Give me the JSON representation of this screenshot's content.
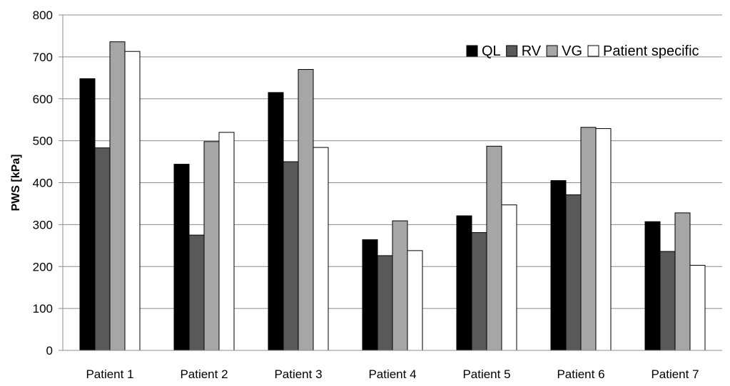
{
  "chart_data": {
    "type": "bar",
    "title": "",
    "xlabel": "",
    "ylabel": "PWS [kPa]",
    "ylim": [
      0,
      800
    ],
    "yticks": [
      0,
      100,
      200,
      300,
      400,
      500,
      600,
      700,
      800
    ],
    "grid": true,
    "legend_position": "top-right",
    "categories": [
      "Patient 1",
      "Patient 2",
      "Patient 3",
      "Patient 4",
      "Patient 5",
      "Patient 6",
      "Patient 7"
    ],
    "series": [
      {
        "name": "QL",
        "color": "#000000",
        "values": [
          648,
          444,
          615,
          264,
          321,
          405,
          307
        ]
      },
      {
        "name": "RV",
        "color": "#595959",
        "values": [
          483,
          275,
          450,
          226,
          281,
          371,
          236
        ]
      },
      {
        "name": "VG",
        "color": "#a6a6a6",
        "values": [
          736,
          498,
          670,
          309,
          487,
          532,
          328
        ]
      },
      {
        "name": "Patient specific",
        "color": "#ffffff",
        "values": [
          713,
          520,
          484,
          238,
          347,
          529,
          203
        ]
      }
    ]
  }
}
